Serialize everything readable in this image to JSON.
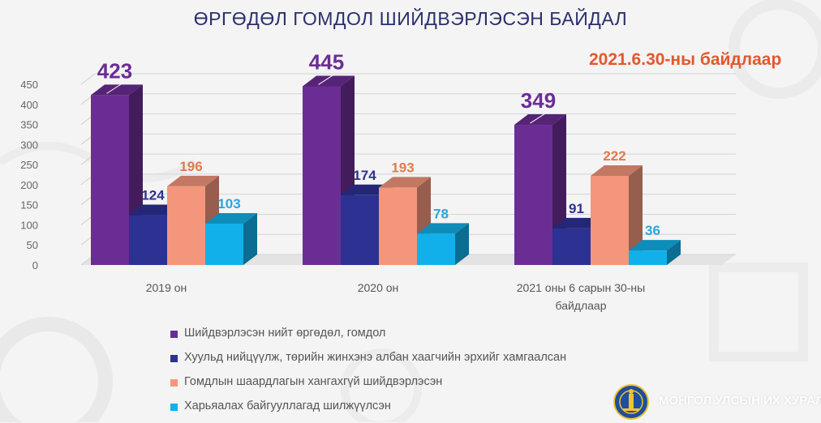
{
  "title": "ӨРГӨДӨЛ ГОМДОЛ ШИЙДВЭРЛЭСЭН  БАЙДАЛ",
  "date_note": "2021.6.30-ны байдлаар",
  "footer": {
    "org_name": "МОНГОЛ УЛСЫН ИХ ХУРАЛ"
  },
  "icons": {
    "emblem": "soyombo-emblem-icon"
  },
  "colors": {
    "total": "#6a2d94",
    "protected": "#2c3192",
    "resolved": "#f4967c",
    "transferred": "#12b0ea",
    "title": "#2b2f6b",
    "note": "#e4572e"
  },
  "chart_data": {
    "type": "bar",
    "title": "ӨРГӨДӨЛ ГОМДОЛ ШИЙДВЭРЛЭСЭН  БАЙДАЛ",
    "categories": [
      "2019 он",
      "2020 он",
      "2021 оны 6 сарын 30-ны байдлаар"
    ],
    "ylim": [
      0,
      450
    ],
    "yticks": [
      0,
      50,
      100,
      150,
      200,
      250,
      300,
      350,
      400,
      450
    ],
    "grid": true,
    "legend_position": "bottom",
    "series": [
      {
        "name": "Шийдвэрлэсэн нийт өргөдөл, гомдол",
        "values": [
          423,
          445,
          349
        ]
      },
      {
        "name": "Хуульд нийцүүлж, төрийн жинхэнэ албан хаагчийн эрхийг хамгаалсан",
        "values": [
          124,
          174,
          91
        ]
      },
      {
        "name": "Гомдлын шаардлагын хангахгүй шийдвэрлэсэн",
        "values": [
          196,
          193,
          222
        ]
      },
      {
        "name": "Харьяалах байгууллагад шилжүүлсэн",
        "values": [
          103,
          78,
          36
        ]
      }
    ]
  }
}
